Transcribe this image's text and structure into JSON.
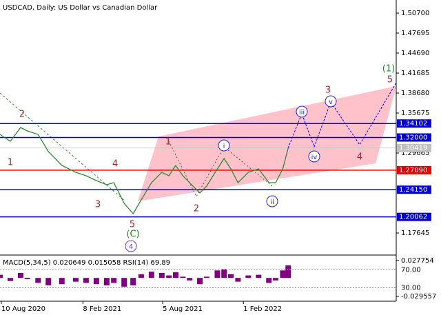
{
  "chart_data": [
    {
      "type": "line",
      "title": "USDCAD, Daily:  US Dollar vs Canadian Dollar",
      "x": [
        "2020-08-07",
        "2020-08-30",
        "2020-09-22",
        "2020-10-07",
        "2020-10-31",
        "2020-11-23",
        "2020-12-23",
        "2021-01-23",
        "2021-02-15",
        "2021-03-10",
        "2021-04-02",
        "2021-04-18",
        "2021-05-11",
        "2021-05-31",
        "2021-06-18",
        "2021-07-11",
        "2021-08-03",
        "2021-08-19",
        "2021-09-03",
        "2021-09-19",
        "2021-10-04",
        "2021-10-27",
        "2021-11-11",
        "2021-12-05",
        "2021-12-20",
        "2022-01-04",
        "2022-01-20",
        "2022-02-12",
        "2022-03-07",
        "2022-03-30",
        "2022-04-14",
        "2022-04-30",
        "2022-05-12"
      ],
      "values": [
        1.3246,
        1.3143,
        1.335,
        1.3298,
        1.3246,
        1.2987,
        1.278,
        1.2676,
        1.2625,
        1.2552,
        1.249,
        1.2521,
        1.221,
        1.2055,
        1.2262,
        1.2521,
        1.2676,
        1.2625,
        1.278,
        1.2625,
        1.2521,
        1.2366,
        1.2469,
        1.2728,
        1.2884,
        1.2728,
        1.2521,
        1.2676,
        1.2728,
        1.2521,
        1.2521,
        1.2728,
        1.3039
      ],
      "color": "#2e8b2e",
      "xlim": [
        "2020-08-07",
        "2023-01-08"
      ],
      "xticks": [
        {
          "value": "2020-08-10",
          "label": "10 Aug 2020"
        },
        {
          "value": "2021-02-08",
          "label": "8 Feb 2021"
        },
        {
          "value": "2021-08-05",
          "label": "5 Aug 2021"
        },
        {
          "value": "2022-02-01",
          "label": "1 Feb 2022"
        }
      ],
      "ylim": [
        1.1433,
        1.5267
      ],
      "yticks": [
        {
          "value": 1.507,
          "label": "1.50700"
        },
        1.47695,
        {
          "value": 1.4469,
          "label": "1.44690"
        },
        1.41685,
        {
          "value": 1.3868,
          "label": "1.38680"
        },
        1.35675,
        1.29665,
        1.17645
      ],
      "levels": [
        {
          "value": 1.34102,
          "color": "#0000cc"
        },
        {
          "value": {
            "value": 1.32,
            "label": "1.32000"
          },
          "color": "#0000cc"
        },
        {
          "value": {
            "value": 1.2709,
            "label": "1.27090"
          },
          "color": "#e00000"
        },
        {
          "value": {
            "value": 1.2415,
            "label": "1.24150"
          },
          "color": "#0000cc"
        },
        {
          "value": 1.20062,
          "color": "#0000cc"
        }
      ],
      "current_price": 1.30419,
      "wave_labels": [
        "1",
        "2",
        "3",
        "4",
        "5",
        "1",
        "2",
        "3",
        "4",
        "5"
      ],
      "green_labels": [
        "(C)",
        "(1)"
      ],
      "purple_circled": [
        "4"
      ],
      "blue_circled": [
        "i",
        "ii",
        "iii",
        "iv",
        "v"
      ]
    },
    {
      "type": "bar",
      "label": "MACD(5,34,5) 0.020649 0.015058 RSI(14) 69.89",
      "x": [
        "2020-08-07",
        "2020-08-30",
        "2020-09-22",
        "2020-10-07",
        "2020-10-31",
        "2020-11-23",
        "2020-12-23",
        "2021-01-23",
        "2021-02-15",
        "2021-03-10",
        "2021-04-02",
        "2021-04-18",
        "2021-05-11",
        "2021-05-31",
        "2021-06-18",
        "2021-07-11",
        "2021-08-03",
        "2021-08-19",
        "2021-09-03",
        "2021-09-19",
        "2021-10-04",
        "2021-10-27",
        "2021-11-11",
        "2021-12-05",
        "2021-12-20",
        "2022-01-04",
        "2022-01-20",
        "2022-02-12",
        "2022-03-07",
        "2022-03-30",
        "2022-04-14",
        "2022-04-30",
        "2022-05-12"
      ],
      "values": [
        0.005,
        -0.005,
        0.008,
        -0.002,
        -0.008,
        -0.012,
        -0.01,
        -0.006,
        -0.008,
        -0.01,
        -0.012,
        -0.008,
        -0.014,
        -0.012,
        0.006,
        0.01,
        0.008,
        0.004,
        0.009,
        0.002,
        -0.004,
        -0.01,
        0.002,
        0.012,
        0.014,
        0.006,
        -0.006,
        0.004,
        0.005,
        -0.008,
        -0.004,
        0.012,
        0.02
      ],
      "color": "#800080",
      "ylim": [
        -0.0373,
        0.0344
      ],
      "yticks": [
        0.027754,
        -0.029557
      ],
      "y2lim": [
        0,
        100
      ],
      "y2ticks": [
        {
          "value": 70,
          "label": "70.00"
        },
        {
          "value": 30,
          "label": "30.00"
        }
      ]
    }
  ]
}
